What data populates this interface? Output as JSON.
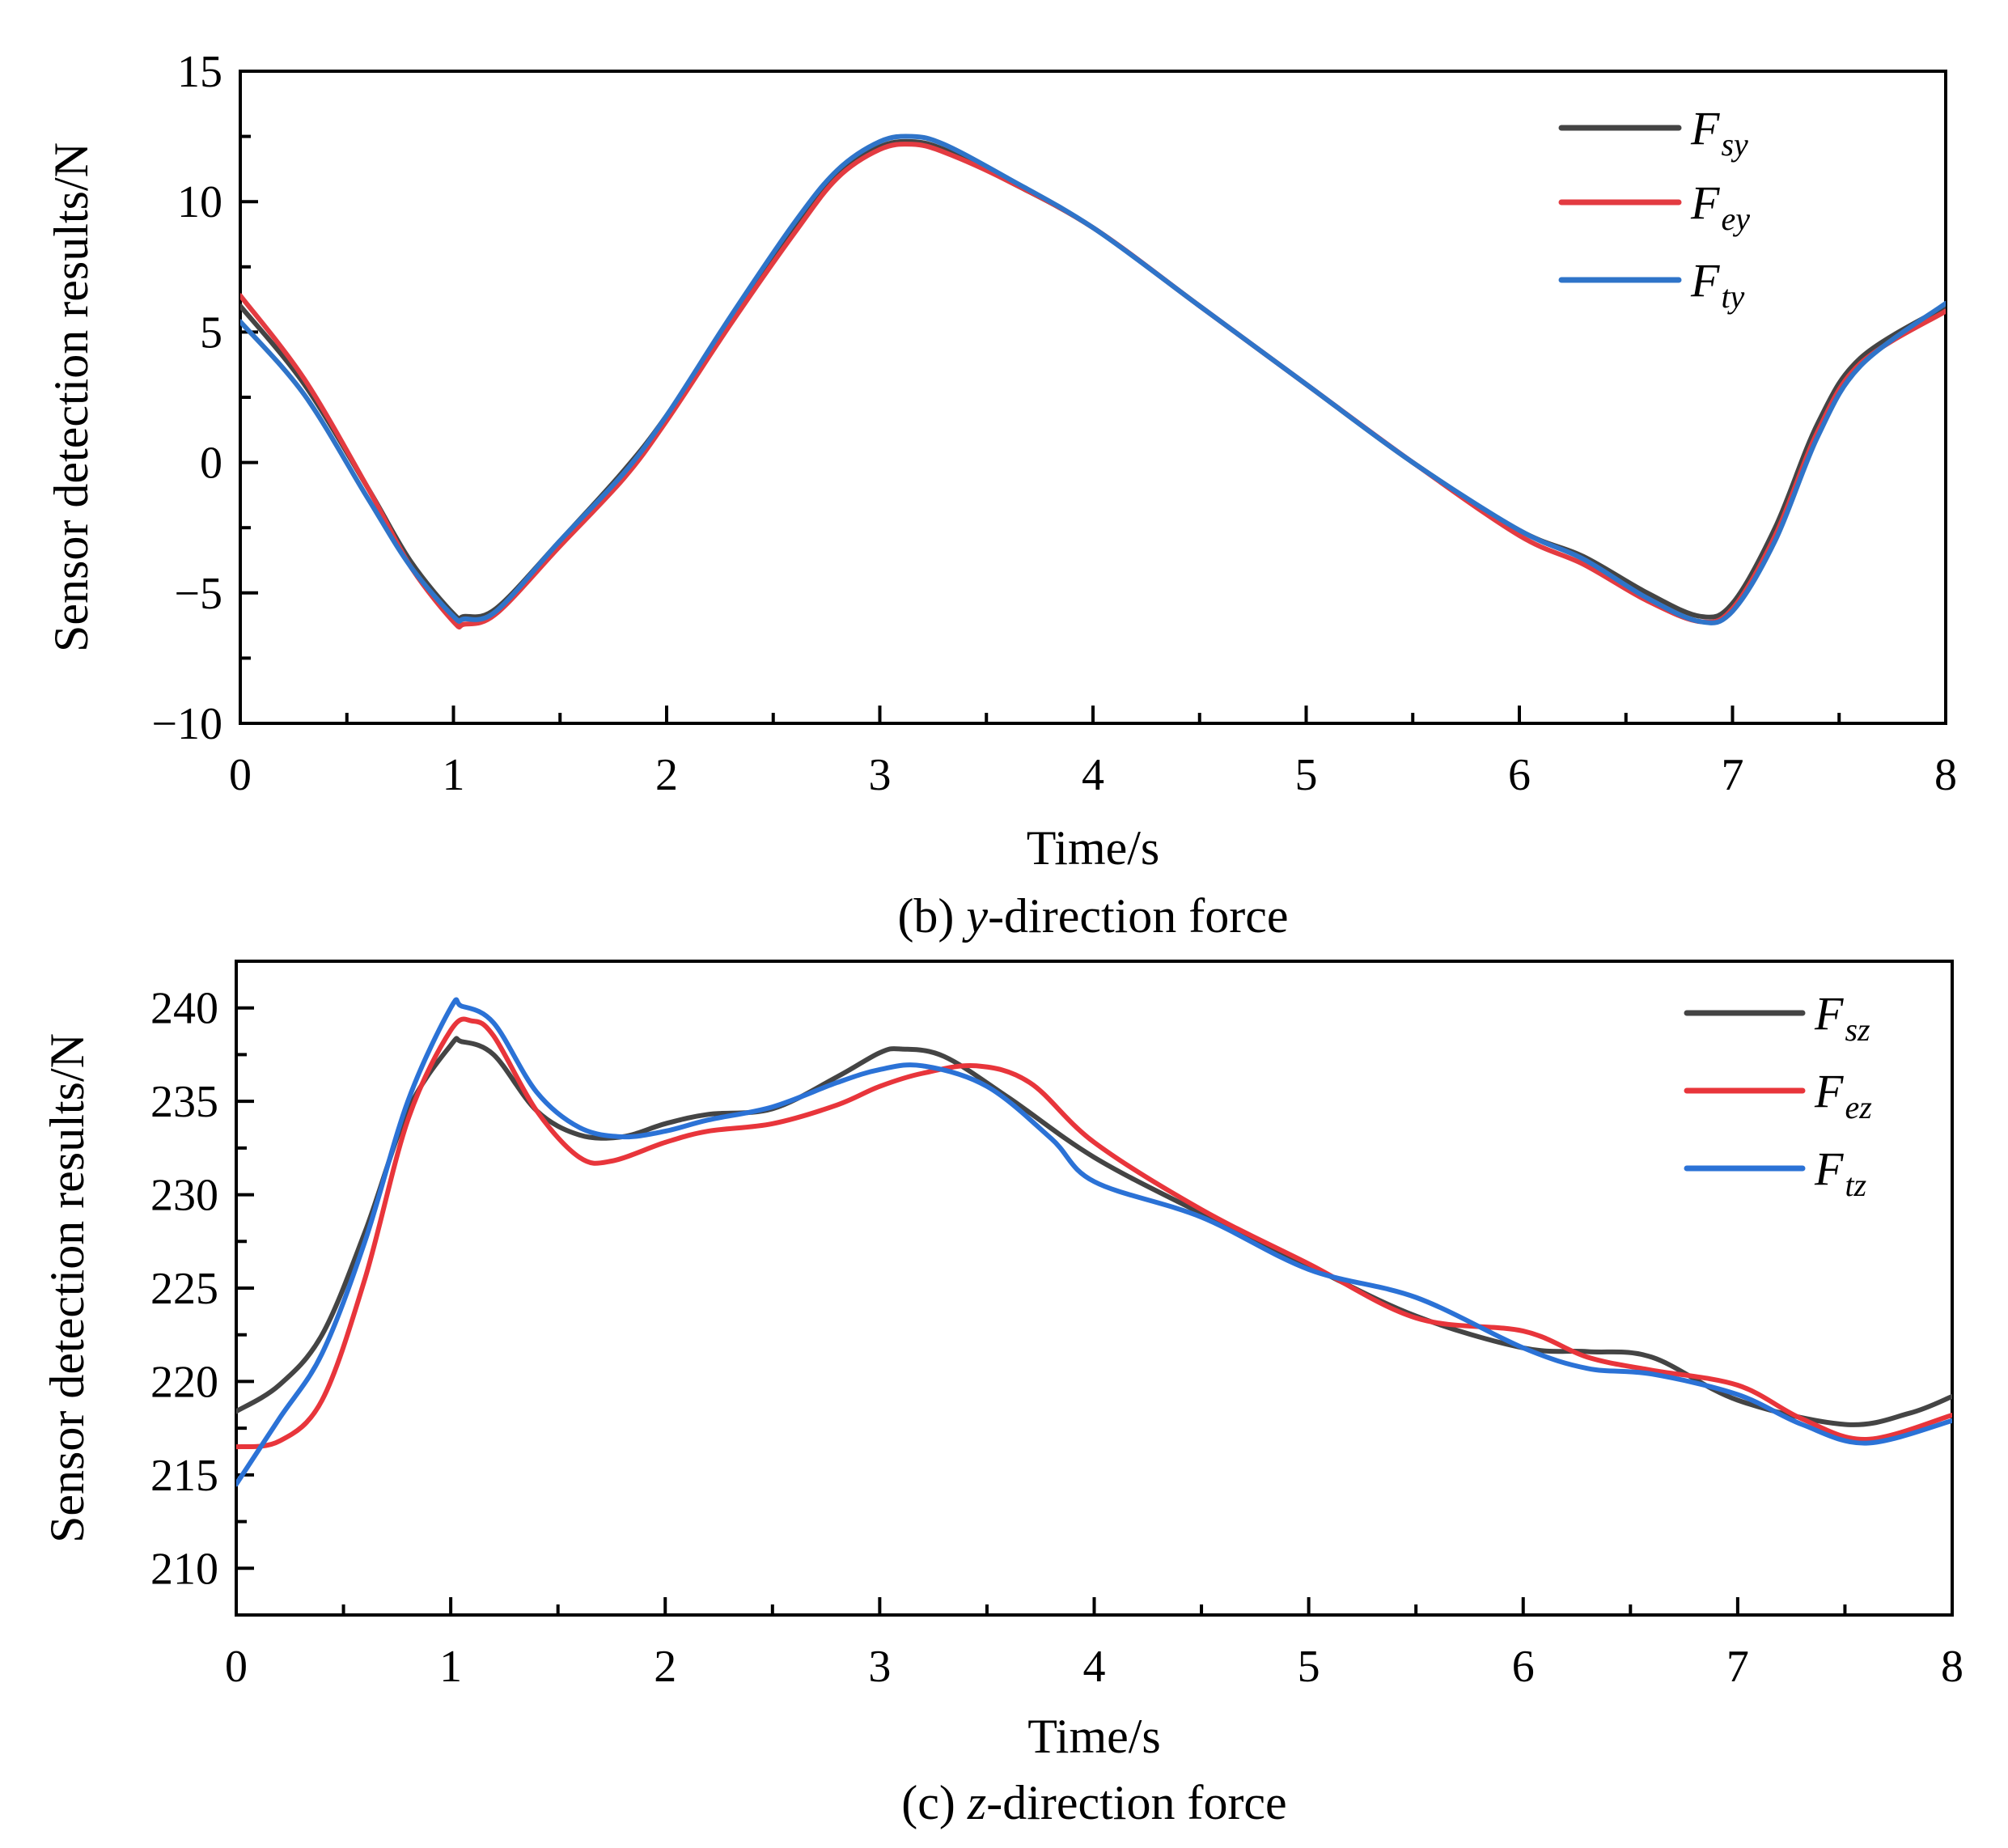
{
  "chart_data": [
    {
      "type": "line",
      "caption": {
        "prefix": "(b) ",
        "var": "y",
        "suffix": "-direction force"
      },
      "xlabel": "Time/s",
      "ylabel": "Sensor detection results/N",
      "xlim": [
        0,
        8
      ],
      "ylim": [
        -10,
        15
      ],
      "xticks": [
        0,
        1,
        2,
        3,
        4,
        5,
        6,
        7,
        8
      ],
      "yticks": [
        -10,
        -5,
        0,
        5,
        10,
        15
      ],
      "ytick_labels": [
        "−10",
        "−5",
        "0",
        "5",
        "10",
        "15"
      ],
      "legend_position": "top-right",
      "series": [
        {
          "name": "F_sy",
          "main": "F",
          "sub": "sy",
          "color": "#444444",
          "x": [
            0,
            0.3,
            0.6,
            0.8,
            1.0,
            1.05,
            1.2,
            1.5,
            1.8,
            2.0,
            2.3,
            2.6,
            2.8,
            3.0,
            3.15,
            3.3,
            3.6,
            4.0,
            4.5,
            5.0,
            5.5,
            6.0,
            6.3,
            6.6,
            6.85,
            7.0,
            7.2,
            7.4,
            7.6,
            8.0
          ],
          "y": [
            6.0,
            3.0,
            -1.0,
            -3.8,
            -5.8,
            -5.9,
            -5.6,
            -3.0,
            -0.3,
            1.8,
            5.5,
            9.0,
            11.0,
            12.1,
            12.3,
            12.0,
            10.8,
            9.0,
            6.0,
            3.0,
            0.0,
            -2.6,
            -3.6,
            -5.0,
            -5.9,
            -5.4,
            -2.5,
            1.5,
            4.0,
            6.0
          ]
        },
        {
          "name": "F_ey",
          "main": "F",
          "sub": "ey",
          "color": "#e33b41",
          "x": [
            0,
            0.3,
            0.6,
            0.8,
            1.0,
            1.05,
            1.2,
            1.5,
            1.8,
            2.0,
            2.3,
            2.6,
            2.8,
            3.0,
            3.15,
            3.3,
            3.6,
            4.0,
            4.5,
            5.0,
            5.5,
            6.0,
            6.3,
            6.6,
            6.85,
            7.0,
            7.2,
            7.4,
            7.6,
            8.0
          ],
          "y": [
            6.4,
            3.2,
            -1.0,
            -4.0,
            -6.1,
            -6.2,
            -5.8,
            -3.2,
            -0.6,
            1.6,
            5.3,
            8.8,
            10.9,
            12.0,
            12.2,
            11.9,
            10.8,
            9.0,
            6.0,
            3.0,
            0.0,
            -2.8,
            -3.9,
            -5.3,
            -6.1,
            -5.6,
            -2.8,
            1.2,
            3.8,
            5.8
          ]
        },
        {
          "name": "F_ty",
          "main": "F",
          "sub": "ty",
          "color": "#2f74c9",
          "x": [
            0,
            0.3,
            0.6,
            0.8,
            1.0,
            1.05,
            1.2,
            1.5,
            1.8,
            2.0,
            2.3,
            2.6,
            2.8,
            3.0,
            3.15,
            3.3,
            3.6,
            4.0,
            4.5,
            5.0,
            5.5,
            6.0,
            6.3,
            6.6,
            6.85,
            7.0,
            7.2,
            7.4,
            7.6,
            8.0
          ],
          "y": [
            5.4,
            2.6,
            -1.4,
            -4.0,
            -5.9,
            -6.0,
            -5.7,
            -3.0,
            -0.4,
            1.8,
            5.6,
            9.2,
            11.2,
            12.3,
            12.5,
            12.2,
            10.9,
            9.0,
            6.0,
            3.0,
            0.0,
            -2.6,
            -3.7,
            -5.2,
            -6.1,
            -5.7,
            -3.0,
            1.0,
            3.7,
            6.1
          ]
        }
      ]
    },
    {
      "type": "line",
      "caption": {
        "prefix": "(c) ",
        "var": "z",
        "suffix": "-direction force"
      },
      "xlabel": "Time/s",
      "ylabel": "Sensor detection results/N",
      "xlim": [
        0,
        8
      ],
      "ylim": [
        207.5,
        242.5
      ],
      "xticks": [
        0,
        1,
        2,
        3,
        4,
        5,
        6,
        7,
        8
      ],
      "yticks": [
        210,
        215,
        220,
        225,
        230,
        235,
        240
      ],
      "ytick_labels": [
        "210",
        "215",
        "220",
        "225",
        "230",
        "235",
        "240"
      ],
      "legend_position": "top-right",
      "series": [
        {
          "name": "F_sz",
          "main": "F",
          "sub": "sz",
          "color": "#444444",
          "x": [
            0,
            0.2,
            0.4,
            0.6,
            0.8,
            1.0,
            1.05,
            1.2,
            1.4,
            1.6,
            1.8,
            2.0,
            2.2,
            2.5,
            2.8,
            3.0,
            3.1,
            3.3,
            3.6,
            4.0,
            4.5,
            5.0,
            5.5,
            6.0,
            6.3,
            6.6,
            7.0,
            7.5,
            7.8,
            8.0
          ],
          "y": [
            218.4,
            219.8,
            222.5,
            228.0,
            234.5,
            238.0,
            238.2,
            237.5,
            234.5,
            233.2,
            233.1,
            233.8,
            234.3,
            234.6,
            236.3,
            237.6,
            237.8,
            237.4,
            235.2,
            232.0,
            229.0,
            226.2,
            223.5,
            221.8,
            221.6,
            221.3,
            219.0,
            217.7,
            218.3,
            219.2
          ]
        },
        {
          "name": "F_ez",
          "main": "F",
          "sub": "ez",
          "color": "#e8353b",
          "x": [
            0,
            0.2,
            0.4,
            0.6,
            0.8,
            1.0,
            1.1,
            1.2,
            1.4,
            1.6,
            1.75,
            2.0,
            2.2,
            2.5,
            2.8,
            3.0,
            3.2,
            3.45,
            3.7,
            4.0,
            4.5,
            5.0,
            5.5,
            6.0,
            6.3,
            6.6,
            7.0,
            7.3,
            7.6,
            8.0
          ],
          "y": [
            216.5,
            216.8,
            219.0,
            225.5,
            234.0,
            238.8,
            239.3,
            238.5,
            234.5,
            232.0,
            231.8,
            232.8,
            233.4,
            233.8,
            234.8,
            235.8,
            236.5,
            236.9,
            236.0,
            232.8,
            229.2,
            226.3,
            223.4,
            222.7,
            221.3,
            220.6,
            219.8,
            218.0,
            216.9,
            218.2
          ]
        },
        {
          "name": "F_tz",
          "main": "F",
          "sub": "tz",
          "color": "#2b72d6",
          "x": [
            0,
            0.2,
            0.4,
            0.6,
            0.8,
            1.0,
            1.05,
            1.2,
            1.4,
            1.6,
            1.8,
            2.0,
            2.2,
            2.5,
            2.8,
            3.0,
            3.2,
            3.5,
            3.8,
            4.0,
            4.5,
            5.0,
            5.5,
            6.0,
            6.3,
            6.6,
            7.0,
            7.3,
            7.6,
            8.0
          ],
          "y": [
            214.5,
            218.0,
            221.5,
            227.5,
            235.0,
            240.0,
            240.1,
            239.2,
            235.5,
            233.6,
            233.1,
            233.4,
            234.0,
            234.7,
            236.0,
            236.7,
            236.9,
            235.8,
            233.0,
            230.7,
            228.8,
            226.0,
            224.5,
            221.8,
            220.7,
            220.4,
            219.3,
            217.7,
            216.7,
            217.9
          ]
        }
      ]
    }
  ]
}
